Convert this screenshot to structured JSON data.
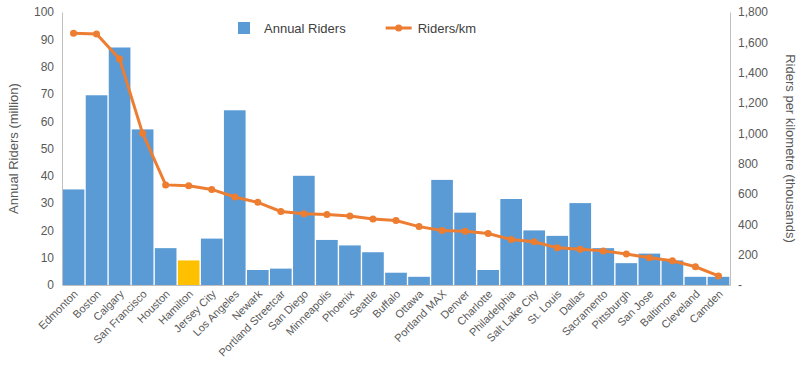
{
  "chart_data": {
    "type": "bar",
    "categories": [
      "Edmonton",
      "Boston",
      "Calgary",
      "San Francisco",
      "Houston",
      "Hamilton",
      "Jersey City",
      "Los Angeles",
      "Newark",
      "Portland Streetcar",
      "San Diego",
      "Minneapolis",
      "Phoenix",
      "Seattle",
      "Buffalo",
      "Ottawa",
      "Portland MAX",
      "Denver",
      "Charlotte",
      "Philadelphia",
      "Salt Lake City",
      "St. Louis",
      "Dallas",
      "Sacramento",
      "Pittsburgh",
      "San Jose",
      "Baltimore",
      "Cleveland",
      "Camden"
    ],
    "series": [
      {
        "name": "Annual Riders",
        "type": "bar",
        "colors": [
          "#5b9bd5",
          "#5b9bd5",
          "#5b9bd5",
          "#5b9bd5",
          "#5b9bd5",
          "#ffc000",
          "#5b9bd5",
          "#5b9bd5",
          "#5b9bd5",
          "#5b9bd5",
          "#5b9bd5",
          "#5b9bd5",
          "#5b9bd5",
          "#5b9bd5",
          "#5b9bd5",
          "#5b9bd5",
          "#5b9bd5",
          "#5b9bd5",
          "#5b9bd5",
          "#5b9bd5",
          "#5b9bd5",
          "#5b9bd5",
          "#5b9bd5",
          "#5b9bd5",
          "#5b9bd5",
          "#5b9bd5",
          "#5b9bd5",
          "#5b9bd5",
          "#5b9bd5"
        ],
        "values": [
          35,
          69.5,
          87,
          57,
          13.5,
          9,
          17,
          64,
          5.5,
          6,
          40,
          16.5,
          14.5,
          12,
          4.5,
          3,
          38.5,
          26.5,
          5.5,
          31.5,
          20,
          18,
          30,
          13.5,
          8,
          11.5,
          9,
          3,
          3
        ]
      },
      {
        "name": "Riders/km",
        "type": "line",
        "axis": "y2",
        "color": "#ed7d31",
        "marker": "circle",
        "values": [
          1660,
          1655,
          1490,
          1000,
          660,
          655,
          630,
          580,
          545,
          485,
          470,
          465,
          455,
          435,
          425,
          385,
          360,
          355,
          340,
          300,
          285,
          245,
          235,
          225,
          205,
          180,
          160,
          120,
          60
        ]
      }
    ],
    "y_label": "Annual Riders (million)",
    "y2_label": "Riders per kilometre (thousands)",
    "ylim": [
      0,
      100
    ],
    "yticks": [
      0,
      10,
      20,
      30,
      40,
      50,
      60,
      70,
      80,
      90,
      100
    ],
    "y2lim": [
      0,
      1800
    ],
    "y2ticks": [
      {
        "value": 0,
        "label": "-"
      },
      200,
      400,
      600,
      800,
      {
        "value": 1000,
        "label": "1,000"
      },
      {
        "value": 1200,
        "label": "1,200"
      },
      {
        "value": 1400,
        "label": "1,400"
      },
      {
        "value": 1600,
        "label": "1,600"
      },
      {
        "value": 1800,
        "label": "1,800"
      }
    ],
    "legend": "top",
    "grid": false
  }
}
